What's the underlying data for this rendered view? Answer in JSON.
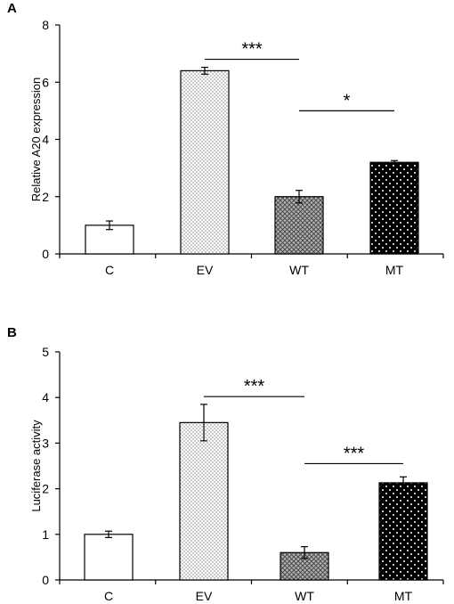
{
  "chart_data": [
    {
      "panel": "A",
      "type": "bar",
      "title": "",
      "xlabel": "",
      "ylabel": "Relative A20 expression",
      "categories": [
        "C",
        "EV",
        "WT",
        "MT"
      ],
      "values": [
        1.0,
        6.4,
        2.0,
        3.2
      ],
      "errors": [
        0.15,
        0.12,
        0.22,
        0.06
      ],
      "patterns": [
        "none",
        "light-dots",
        "crosshatch",
        "white-dots-on-black"
      ],
      "ylim": [
        0,
        8
      ],
      "yticks": [
        0,
        2,
        4,
        6,
        8
      ],
      "grid": false,
      "significance": [
        {
          "from": "EV",
          "to": "WT",
          "label": "***",
          "y": 6.8
        },
        {
          "from": "WT",
          "to": "MT",
          "label": "*",
          "y": 5.0
        }
      ]
    },
    {
      "panel": "B",
      "type": "bar",
      "title": "",
      "xlabel": "",
      "ylabel": "Luciferase activity",
      "categories": [
        "C",
        "EV",
        "WT",
        "MT"
      ],
      "values": [
        1.0,
        3.45,
        0.6,
        2.13
      ],
      "errors": [
        0.07,
        0.4,
        0.13,
        0.13
      ],
      "patterns": [
        "none",
        "light-dots",
        "crosshatch",
        "white-dots-on-black"
      ],
      "ylim": [
        0,
        5
      ],
      "yticks": [
        0,
        1,
        2,
        3,
        4,
        5
      ],
      "grid": false,
      "significance": [
        {
          "from": "EV",
          "to": "WT",
          "label": "***",
          "y": 4.02
        },
        {
          "from": "WT",
          "to": "MT",
          "label": "***",
          "y": 2.55
        }
      ]
    }
  ]
}
